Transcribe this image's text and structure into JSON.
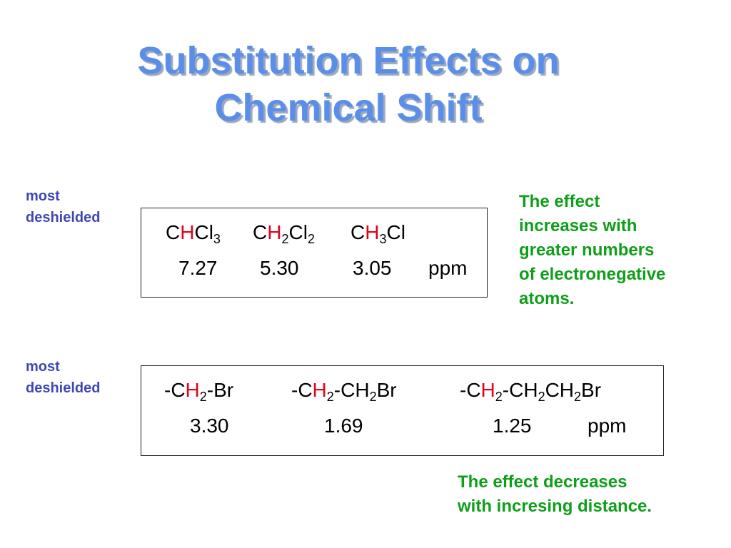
{
  "title": {
    "line1": "Substitution Effects on",
    "line2": "Chemical Shift"
  },
  "section1": {
    "label": [
      "most",
      "deshielded"
    ],
    "compounds": [
      {
        "pre": "C",
        "hl": "H",
        "post": "Cl",
        "sub": "3",
        "tail": ""
      },
      {
        "pre": "C",
        "hl": "H",
        "sub_h": "2",
        "post": "Cl",
        "sub": "2",
        "tail": ""
      },
      {
        "pre": "C",
        "hl": "H",
        "sub_h": "3",
        "post": "Cl",
        "sub": "",
        "tail": ""
      }
    ],
    "shifts": [
      "7.27",
      "5.30",
      "3.05"
    ],
    "unit": "ppm",
    "note": [
      "The effect",
      "increases with",
      "greater numbers",
      "of electronegative",
      "atoms."
    ]
  },
  "section2": {
    "label": [
      "most",
      "deshielded"
    ],
    "compounds": [
      {
        "pre": "-C",
        "hl": "H",
        "sub_h": "2",
        "rest": "-Br"
      },
      {
        "pre": "-C",
        "hl": "H",
        "sub_h": "2",
        "rest_a": "-CH",
        "rest_a_sub": "2",
        "rest_b": "Br"
      },
      {
        "pre": "-C",
        "hl": "H",
        "sub_h": "2",
        "rest_a": "-CH",
        "rest_a_sub": "2",
        "rest_b": "CH",
        "rest_b_sub": "2",
        "rest_c": "Br"
      }
    ],
    "shifts": [
      "3.30",
      "1.69",
      "1.25"
    ],
    "unit": "ppm",
    "note": [
      "The effect decreases",
      "with incresing distance."
    ]
  },
  "colors": {
    "title": "#5b8ee8",
    "label": "#3f47b5",
    "highlight": "#e3001b",
    "note": "#0f9e1a"
  }
}
